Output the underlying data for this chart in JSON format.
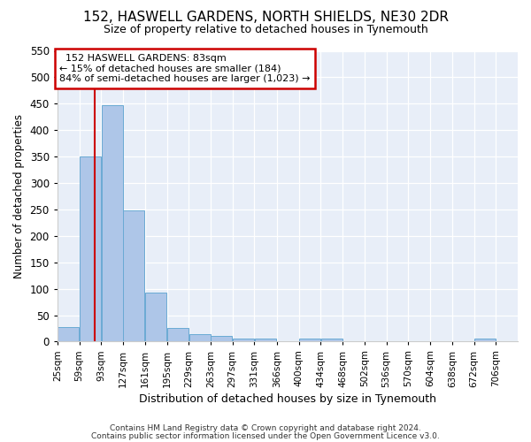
{
  "title1": "152, HASWELL GARDENS, NORTH SHIELDS, NE30 2DR",
  "title2": "Size of property relative to detached houses in Tynemouth",
  "xlabel": "Distribution of detached houses by size in Tynemouth",
  "ylabel": "Number of detached properties",
  "bar_color": "#aec6e8",
  "bar_edge_color": "#6aaad4",
  "bins": [
    25,
    59,
    93,
    127,
    161,
    195,
    229,
    263,
    297,
    331,
    366,
    400,
    434,
    468,
    502,
    536,
    570,
    604,
    638,
    672,
    706
  ],
  "values": [
    28,
    350,
    447,
    248,
    93,
    25,
    14,
    10,
    6,
    6,
    0,
    6,
    5,
    0,
    0,
    0,
    0,
    0,
    0,
    5
  ],
  "ylim": [
    0,
    550
  ],
  "yticks": [
    0,
    50,
    100,
    150,
    200,
    250,
    300,
    350,
    400,
    450,
    500,
    550
  ],
  "annotation_text": "  152 HASWELL GARDENS: 83sqm\n← 15% of detached houses are smaller (184)\n84% of semi-detached houses are larger (1,023) →",
  "annotation_box_color": "#ffffff",
  "annotation_box_edge": "#cc0000",
  "vline_x": 83,
  "vline_color": "#cc0000",
  "background_color": "#e8eef8",
  "footer1": "Contains HM Land Registry data © Crown copyright and database right 2024.",
  "footer2": "Contains public sector information licensed under the Open Government Licence v3.0.",
  "bin_width": 34,
  "title1_fontsize": 11,
  "title2_fontsize": 9,
  "ylabel_fontsize": 8.5,
  "xlabel_fontsize": 9,
  "tick_fontsize": 7.5,
  "footer_fontsize": 6.5
}
